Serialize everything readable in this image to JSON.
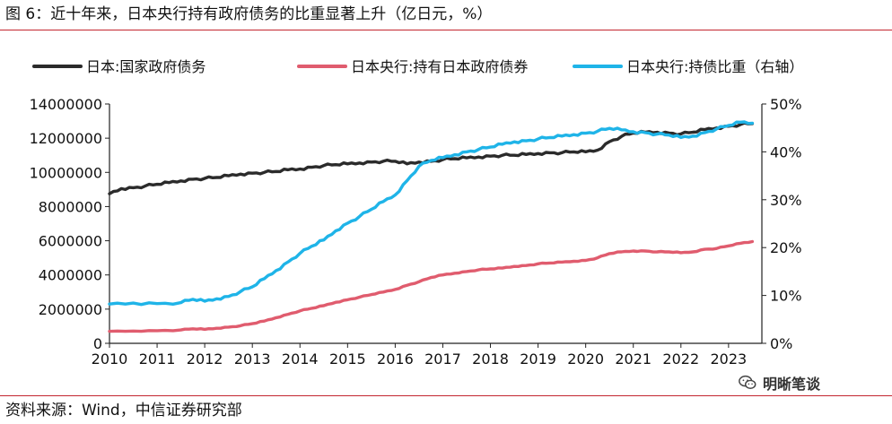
{
  "title": "图 6：近十年来，日本央行持有政府债务的比重显著上升（亿日元，%）",
  "source": "资料来源：Wind，中信证券研究部",
  "watermark": {
    "text": "明晰笔谈",
    "icon": "wechat-icon"
  },
  "colors": {
    "rule": "#c3262f",
    "national_debt": "#2b2b2b",
    "boj_holdings": "#e05c6e",
    "boj_share": "#1fb4e8"
  },
  "chart_data": {
    "type": "line",
    "x_ticks": [
      "2010",
      "2011",
      "2012",
      "2013",
      "2014",
      "2015",
      "2016",
      "2017",
      "2018",
      "2019",
      "2020",
      "2021",
      "2022",
      "2023"
    ],
    "xlim": [
      2010,
      2023.7
    ],
    "ylim_left": [
      0,
      14000000
    ],
    "ylim_right": [
      0,
      50
    ],
    "left_ticks": [
      "0",
      "2000000",
      "4000000",
      "6000000",
      "8000000",
      "10000000",
      "12000000",
      "14000000"
    ],
    "right_ticks": [
      "0%",
      "10%",
      "20%",
      "30%",
      "40%",
      "50%"
    ],
    "legend_position": "top",
    "grid": false,
    "series": [
      {
        "name": "日本:国家政府债务",
        "axis": "left",
        "color": "#2b2b2b",
        "points": [
          [
            2010.0,
            8750000
          ],
          [
            2010.25,
            9050000
          ],
          [
            2010.5,
            9100000
          ],
          [
            2010.75,
            9200000
          ],
          [
            2011.0,
            9300000
          ],
          [
            2011.25,
            9400000
          ],
          [
            2011.5,
            9500000
          ],
          [
            2011.75,
            9600000
          ],
          [
            2012.0,
            9650000
          ],
          [
            2012.25,
            9700000
          ],
          [
            2012.5,
            9800000
          ],
          [
            2012.75,
            9900000
          ],
          [
            2013.0,
            9950000
          ],
          [
            2013.25,
            10000000
          ],
          [
            2013.5,
            10050000
          ],
          [
            2013.75,
            10150000
          ],
          [
            2014.0,
            10200000
          ],
          [
            2014.25,
            10300000
          ],
          [
            2014.5,
            10400000
          ],
          [
            2014.75,
            10450000
          ],
          [
            2015.0,
            10500000
          ],
          [
            2015.25,
            10550000
          ],
          [
            2015.5,
            10600000
          ],
          [
            2015.75,
            10650000
          ],
          [
            2016.0,
            10650000
          ],
          [
            2016.25,
            10500000
          ],
          [
            2016.5,
            10600000
          ],
          [
            2016.75,
            10650000
          ],
          [
            2017.0,
            10750000
          ],
          [
            2017.25,
            10800000
          ],
          [
            2017.5,
            10850000
          ],
          [
            2017.75,
            10900000
          ],
          [
            2018.0,
            10950000
          ],
          [
            2018.25,
            11000000
          ],
          [
            2018.5,
            11000000
          ],
          [
            2018.75,
            11050000
          ],
          [
            2019.0,
            11100000
          ],
          [
            2019.25,
            11150000
          ],
          [
            2019.5,
            11150000
          ],
          [
            2019.75,
            11200000
          ],
          [
            2020.0,
            11200000
          ],
          [
            2020.25,
            11300000
          ],
          [
            2020.5,
            11800000
          ],
          [
            2020.75,
            12100000
          ],
          [
            2021.0,
            12300000
          ],
          [
            2021.25,
            12350000
          ],
          [
            2021.5,
            12350000
          ],
          [
            2021.75,
            12300000
          ],
          [
            2022.0,
            12250000
          ],
          [
            2022.25,
            12350000
          ],
          [
            2022.5,
            12500000
          ],
          [
            2022.75,
            12600000
          ],
          [
            2023.0,
            12700000
          ],
          [
            2023.25,
            12800000
          ],
          [
            2023.5,
            12850000
          ]
        ]
      },
      {
        "name": "日本央行:持有日本政府债券",
        "axis": "left",
        "color": "#e05c6e",
        "points": [
          [
            2010.0,
            700000
          ],
          [
            2010.5,
            720000
          ],
          [
            2011.0,
            740000
          ],
          [
            2011.5,
            780000
          ],
          [
            2011.75,
            850000
          ],
          [
            2012.0,
            820000
          ],
          [
            2012.25,
            880000
          ],
          [
            2012.5,
            950000
          ],
          [
            2012.75,
            1030000
          ],
          [
            2013.0,
            1150000
          ],
          [
            2013.25,
            1300000
          ],
          [
            2013.5,
            1500000
          ],
          [
            2013.75,
            1700000
          ],
          [
            2014.0,
            1900000
          ],
          [
            2014.25,
            2050000
          ],
          [
            2014.5,
            2200000
          ],
          [
            2014.75,
            2400000
          ],
          [
            2015.0,
            2550000
          ],
          [
            2015.25,
            2700000
          ],
          [
            2015.5,
            2850000
          ],
          [
            2015.75,
            3000000
          ],
          [
            2016.0,
            3150000
          ],
          [
            2016.25,
            3400000
          ],
          [
            2016.5,
            3600000
          ],
          [
            2016.75,
            3850000
          ],
          [
            2017.0,
            4000000
          ],
          [
            2017.25,
            4100000
          ],
          [
            2017.5,
            4200000
          ],
          [
            2017.75,
            4300000
          ],
          [
            2018.0,
            4350000
          ],
          [
            2018.25,
            4400000
          ],
          [
            2018.5,
            4500000
          ],
          [
            2018.75,
            4550000
          ],
          [
            2019.0,
            4650000
          ],
          [
            2019.25,
            4700000
          ],
          [
            2019.5,
            4750000
          ],
          [
            2019.75,
            4800000
          ],
          [
            2020.0,
            4850000
          ],
          [
            2020.25,
            5000000
          ],
          [
            2020.5,
            5250000
          ],
          [
            2020.75,
            5350000
          ],
          [
            2021.0,
            5400000
          ],
          [
            2021.25,
            5400000
          ],
          [
            2021.5,
            5350000
          ],
          [
            2021.75,
            5350000
          ],
          [
            2022.0,
            5300000
          ],
          [
            2022.25,
            5350000
          ],
          [
            2022.5,
            5500000
          ],
          [
            2022.75,
            5550000
          ],
          [
            2023.0,
            5700000
          ],
          [
            2023.25,
            5850000
          ],
          [
            2023.5,
            5950000
          ]
        ]
      },
      {
        "name": "日本央行:持债比重（右轴）",
        "axis": "right",
        "color": "#1fb4e8",
        "points": [
          [
            2010.0,
            8.2
          ],
          [
            2010.5,
            8.4
          ],
          [
            2011.0,
            8.3
          ],
          [
            2011.5,
            8.5
          ],
          [
            2011.75,
            9.2
          ],
          [
            2012.0,
            8.8
          ],
          [
            2012.25,
            9.3
          ],
          [
            2012.5,
            9.8
          ],
          [
            2012.75,
            10.8
          ],
          [
            2013.0,
            11.8
          ],
          [
            2013.25,
            13.5
          ],
          [
            2013.5,
            15.2
          ],
          [
            2013.75,
            17.0
          ],
          [
            2014.0,
            18.8
          ],
          [
            2014.25,
            20.3
          ],
          [
            2014.5,
            21.6
          ],
          [
            2014.75,
            23.5
          ],
          [
            2015.0,
            25.1
          ],
          [
            2015.25,
            26.5
          ],
          [
            2015.5,
            28.0
          ],
          [
            2015.75,
            29.6
          ],
          [
            2016.0,
            31.0
          ],
          [
            2016.25,
            34.0
          ],
          [
            2016.5,
            37.0
          ],
          [
            2016.75,
            38.2
          ],
          [
            2017.0,
            38.8
          ],
          [
            2017.25,
            39.4
          ],
          [
            2017.5,
            40.0
          ],
          [
            2017.75,
            40.5
          ],
          [
            2018.0,
            41.0
          ],
          [
            2018.25,
            41.6
          ],
          [
            2018.5,
            42.1
          ],
          [
            2018.75,
            42.3
          ],
          [
            2019.0,
            42.7
          ],
          [
            2019.25,
            43.0
          ],
          [
            2019.5,
            43.3
          ],
          [
            2019.75,
            43.6
          ],
          [
            2020.0,
            43.9
          ],
          [
            2020.25,
            44.3
          ],
          [
            2020.5,
            44.9
          ],
          [
            2020.75,
            44.6
          ],
          [
            2021.0,
            44.2
          ],
          [
            2021.25,
            44.0
          ],
          [
            2021.5,
            43.7
          ],
          [
            2021.75,
            43.5
          ],
          [
            2022.0,
            43.0
          ],
          [
            2022.25,
            43.3
          ],
          [
            2022.5,
            44.0
          ],
          [
            2022.75,
            44.8
          ],
          [
            2023.0,
            45.5
          ],
          [
            2023.25,
            46.2
          ],
          [
            2023.5,
            46.0
          ]
        ]
      }
    ]
  }
}
